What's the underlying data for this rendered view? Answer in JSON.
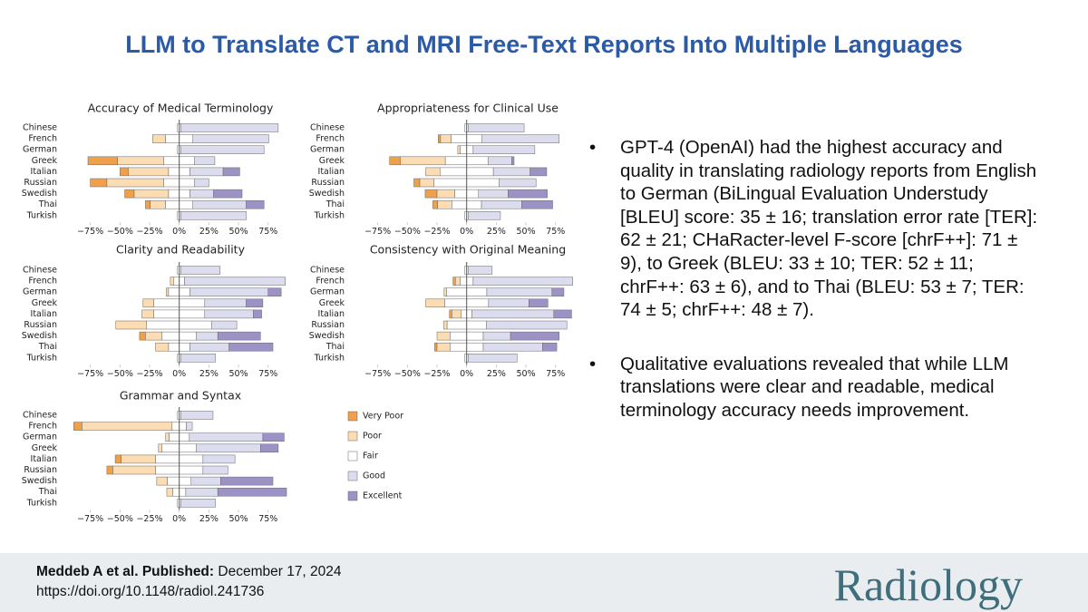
{
  "title": "LLM to Translate CT and MRI Free-Text Reports Into Multiple Languages",
  "chart_data": [
    {
      "type": "diverging-bar",
      "title": "Accuracy of Medical Terminology",
      "categories": [
        "Chinese",
        "French",
        "German",
        "Greek",
        "Italian",
        "Russian",
        "Swedish",
        "Thai",
        "Turkish"
      ],
      "xlim": [
        -90,
        92
      ],
      "xticks": [
        {
          "value": -75,
          "label": "−75%"
        },
        {
          "value": -50,
          "label": "−50%"
        },
        {
          "value": -25,
          "label": "−25%"
        },
        {
          "value": 0,
          "label": "0%"
        },
        {
          "value": 25,
          "label": "25%"
        },
        {
          "value": 50,
          "label": "50%"
        },
        {
          "value": 75,
          "label": "75%"
        }
      ],
      "series": [
        {
          "name": "Very Poor",
          "color": "#f0a04b",
          "values": [
            0,
            0,
            0,
            25,
            7,
            14,
            8,
            4,
            0
          ]
        },
        {
          "name": "Poor",
          "color": "#fcdcb2",
          "values": [
            0,
            11,
            0,
            39,
            34,
            48,
            29,
            13,
            0
          ]
        },
        {
          "name": "Fair",
          "color": "#ffffff",
          "values": [
            3,
            23,
            3,
            26,
            18,
            26,
            18,
            23,
            3
          ]
        },
        {
          "name": "Good",
          "color": "#dcdcef",
          "values": [
            82,
            64,
            70,
            17,
            28,
            12,
            20,
            45,
            55
          ]
        },
        {
          "name": "Excellent",
          "color": "#9d92c6",
          "values": [
            0,
            0,
            0,
            0,
            14,
            0,
            24,
            15,
            0
          ]
        }
      ]
    },
    {
      "type": "diverging-bar",
      "title": "Appropriateness for Clinical Use",
      "categories": [
        "Chinese",
        "French",
        "German",
        "Greek",
        "Italian",
        "Russian",
        "Swedish",
        "Thai",
        "Turkish"
      ],
      "xlim": [
        -90,
        92
      ],
      "xticks": [
        {
          "value": -75,
          "label": "−75%"
        },
        {
          "value": -50,
          "label": "−50%"
        },
        {
          "value": -25,
          "label": "−25%"
        },
        {
          "value": 0,
          "label": "0%"
        },
        {
          "value": 25,
          "label": "25%"
        },
        {
          "value": 50,
          "label": "50%"
        },
        {
          "value": 75,
          "label": "75%"
        }
      ],
      "series": [
        {
          "name": "Very Poor",
          "color": "#f0a04b",
          "values": [
            0,
            2,
            0,
            9,
            0,
            5,
            10,
            4,
            0
          ]
        },
        {
          "name": "Poor",
          "color": "#fcdcb2",
          "values": [
            0,
            9,
            2,
            38,
            12,
            12,
            15,
            12,
            0
          ]
        },
        {
          "name": "Fair",
          "color": "#ffffff",
          "values": [
            3,
            26,
            11,
            36,
            45,
            55,
            20,
            25,
            3
          ]
        },
        {
          "name": "Good",
          "color": "#dcdcef",
          "values": [
            47,
            65,
            52,
            20,
            31,
            31,
            25,
            34,
            27
          ]
        },
        {
          "name": "Excellent",
          "color": "#9d92c6",
          "values": [
            0,
            0,
            0,
            2,
            14,
            0,
            33,
            26,
            0
          ]
        }
      ]
    },
    {
      "type": "diverging-bar",
      "title": "Clarity and Readability",
      "categories": [
        "Chinese",
        "French",
        "German",
        "Greek",
        "Italian",
        "Russian",
        "Swedish",
        "Thai",
        "Turkish"
      ],
      "xlim": [
        -90,
        92
      ],
      "xticks": [
        {
          "value": -75,
          "label": "−75%"
        },
        {
          "value": -50,
          "label": "−50%"
        },
        {
          "value": -25,
          "label": "−25%"
        },
        {
          "value": 0,
          "label": "0%"
        },
        {
          "value": 25,
          "label": "25%"
        },
        {
          "value": 50,
          "label": "50%"
        },
        {
          "value": 75,
          "label": "75%"
        }
      ],
      "series": [
        {
          "name": "Very Poor",
          "color": "#f0a04b",
          "values": [
            0,
            0,
            0,
            0,
            0,
            0,
            5,
            0,
            0
          ]
        },
        {
          "name": "Poor",
          "color": "#fcdcb2",
          "values": [
            0,
            3,
            2,
            9,
            10,
            26,
            14,
            11,
            0
          ]
        },
        {
          "name": "Fair",
          "color": "#ffffff",
          "values": [
            3,
            9,
            18,
            43,
            43,
            55,
            29,
            18,
            3
          ]
        },
        {
          "name": "Good",
          "color": "#dcdcef",
          "values": [
            33,
            85,
            66,
            35,
            41,
            21,
            18,
            33,
            29
          ]
        },
        {
          "name": "Excellent",
          "color": "#9d92c6",
          "values": [
            0,
            0,
            11,
            14,
            7,
            0,
            36,
            37,
            0
          ]
        }
      ]
    },
    {
      "type": "diverging-bar",
      "title": "Consistency with Original Meaning",
      "categories": [
        "Chinese",
        "French",
        "German",
        "Greek",
        "Italian",
        "Russian",
        "Swedish",
        "Thai",
        "Turkish"
      ],
      "xlim": [
        -90,
        92
      ],
      "xticks": [
        {
          "value": -75,
          "label": "−75%"
        },
        {
          "value": -50,
          "label": "−50%"
        },
        {
          "value": -25,
          "label": "−25%"
        },
        {
          "value": 0,
          "label": "0%"
        },
        {
          "value": 25,
          "label": "25%"
        },
        {
          "value": 50,
          "label": "50%"
        },
        {
          "value": 75,
          "label": "75%"
        }
      ],
      "series": [
        {
          "name": "Very Poor",
          "color": "#f0a04b",
          "values": [
            0,
            2,
            0,
            0,
            2,
            0,
            0,
            2,
            0
          ]
        },
        {
          "name": "Poor",
          "color": "#fcdcb2",
          "values": [
            0,
            4,
            2,
            16,
            8,
            3,
            11,
            11,
            0
          ]
        },
        {
          "name": "Fair",
          "color": "#ffffff",
          "values": [
            3,
            11,
            34,
            37,
            9,
            33,
            28,
            28,
            3
          ]
        },
        {
          "name": "Good",
          "color": "#dcdcef",
          "values": [
            20,
            84,
            55,
            34,
            69,
            68,
            23,
            50,
            41
          ]
        },
        {
          "name": "Excellent",
          "color": "#9d92c6",
          "values": [
            0,
            0,
            10,
            16,
            15,
            0,
            41,
            12,
            0
          ]
        }
      ]
    },
    {
      "type": "diverging-bar",
      "title": "Grammar and Syntax",
      "categories": [
        "Chinese",
        "French",
        "German",
        "Greek",
        "Italian",
        "Russian",
        "Swedish",
        "Thai",
        "Turkish"
      ],
      "xlim": [
        -90,
        92
      ],
      "xticks": [
        {
          "value": -75,
          "label": "−75%"
        },
        {
          "value": -50,
          "label": "−50%"
        },
        {
          "value": -25,
          "label": "−25%"
        },
        {
          "value": 0,
          "label": "0%"
        },
        {
          "value": 25,
          "label": "25%"
        },
        {
          "value": 50,
          "label": "50%"
        },
        {
          "value": 75,
          "label": "75%"
        }
      ],
      "series": [
        {
          "name": "Very Poor",
          "color": "#f0a04b",
          "values": [
            0,
            7,
            0,
            0,
            5,
            5,
            0,
            0,
            0
          ]
        },
        {
          "name": "Poor",
          "color": "#fcdcb2",
          "values": [
            0,
            76,
            3,
            3,
            29,
            36,
            9,
            5,
            0
          ]
        },
        {
          "name": "Fair",
          "color": "#ffffff",
          "values": [
            3,
            12,
            17,
            29,
            40,
            40,
            20,
            11,
            3
          ]
        },
        {
          "name": "Good",
          "color": "#dcdcef",
          "values": [
            27,
            5,
            62,
            54,
            27,
            21,
            25,
            27,
            29
          ]
        },
        {
          "name": "Excellent",
          "color": "#9d92c6",
          "values": [
            0,
            0,
            18,
            15,
            0,
            0,
            44,
            58,
            0
          ]
        }
      ]
    }
  ],
  "bullets": [
    "GPT-4 (OpenAI) had the highest accuracy and quality in translating radiology reports from English to German (BiLingual Evaluation Understudy [BLEU] score: 35 ± 16; translation error rate [TER]: 62 ± 21; CHaRacter-level F-score [chrF++]: 71 ± 9), to Greek (BLEU: 33 ± 10; TER: 52 ± 11; chrF++: 63 ± 6), and to Thai (BLEU: 53 ± 7; TER: 74 ± 5; chrF++: 48 ± 7).",
    "Qualitative evaluations revealed that while LLM translations were clear and readable, medical terminology accuracy needs improvement."
  ],
  "footer": {
    "citation": "Meddeb A et al. Published:",
    "date": "December 17, 2024",
    "doi": "https://doi.org/10.1148/radiol.241736",
    "logo": "Radiology"
  }
}
